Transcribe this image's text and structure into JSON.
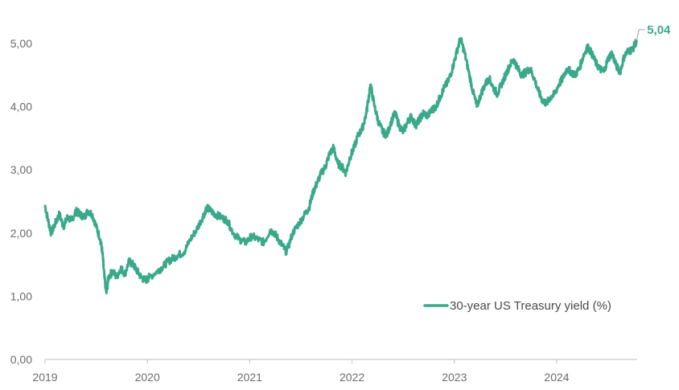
{
  "chart_data": {
    "type": "line",
    "title": "",
    "xlabel": "",
    "ylabel": "",
    "ylim": [
      0,
      5.5
    ],
    "xlim": [
      2019.0,
      2024.8
    ],
    "y_ticks": [
      {
        "value": 0,
        "label": "0,00"
      },
      {
        "value": 1,
        "label": "1,00"
      },
      {
        "value": 2,
        "label": "2,00"
      },
      {
        "value": 3,
        "label": "3,00"
      },
      {
        "value": 4,
        "label": "4,00"
      },
      {
        "value": 5,
        "label": "5,00"
      }
    ],
    "x_ticks": [
      {
        "value": 2019,
        "label": "2019"
      },
      {
        "value": 2020,
        "label": "2020"
      },
      {
        "value": 2021,
        "label": "2021"
      },
      {
        "value": 2022,
        "label": "2022"
      },
      {
        "value": 2023,
        "label": "2023"
      },
      {
        "value": 2024,
        "label": "2024"
      }
    ],
    "grid": false,
    "legend_position": "bottom-right",
    "series": [
      {
        "name": "30-year US Treasury yield (%)",
        "color": "#3aa88a",
        "x": [
          2019.0,
          2019.03,
          2019.06,
          2019.1,
          2019.14,
          2019.18,
          2019.22,
          2019.26,
          2019.3,
          2019.34,
          2019.38,
          2019.42,
          2019.46,
          2019.5,
          2019.54,
          2019.56,
          2019.58,
          2019.6,
          2019.62,
          2019.66,
          2019.7,
          2019.74,
          2019.78,
          2019.82,
          2019.86,
          2019.9,
          2019.94,
          2019.98,
          2020.02,
          2020.1,
          2020.14,
          2020.2,
          2020.25,
          2020.3,
          2020.36,
          2020.42,
          2020.48,
          2020.54,
          2020.58,
          2020.62,
          2020.66,
          2020.72,
          2020.78,
          2020.84,
          2020.9,
          2020.96,
          2021.02,
          2021.08,
          2021.14,
          2021.2,
          2021.24,
          2021.28,
          2021.32,
          2021.36,
          2021.42,
          2021.48,
          2021.54,
          2021.58,
          2021.62,
          2021.66,
          2021.7,
          2021.74,
          2021.78,
          2021.82,
          2021.86,
          2021.9,
          2021.94,
          2021.98,
          2022.02,
          2022.06,
          2022.1,
          2022.14,
          2022.18,
          2022.22,
          2022.26,
          2022.3,
          2022.34,
          2022.38,
          2022.42,
          2022.46,
          2022.5,
          2022.54,
          2022.58,
          2022.62,
          2022.66,
          2022.7,
          2022.74,
          2022.78,
          2022.82,
          2022.86,
          2022.9,
          2022.94,
          2022.98,
          2023.02,
          2023.06,
          2023.1,
          2023.14,
          2023.18,
          2023.22,
          2023.26,
          2023.3,
          2023.34,
          2023.38,
          2023.42,
          2023.46,
          2023.5,
          2023.54,
          2023.58,
          2023.62,
          2023.66,
          2023.7,
          2023.74,
          2023.78,
          2023.82,
          2023.86,
          2023.9,
          2023.94,
          2023.98,
          2024.02,
          2024.06,
          2024.1,
          2024.14,
          2024.18,
          2024.22,
          2024.26,
          2024.3,
          2024.34,
          2024.38,
          2024.42,
          2024.46,
          2024.5,
          2024.54,
          2024.58,
          2024.62,
          2024.66,
          2024.7,
          2024.74,
          2024.78
        ],
        "values": [
          2.43,
          2.2,
          2.0,
          2.15,
          2.3,
          2.1,
          2.25,
          2.2,
          2.35,
          2.3,
          2.25,
          2.35,
          2.3,
          2.1,
          1.9,
          1.7,
          1.3,
          1.05,
          1.3,
          1.4,
          1.3,
          1.45,
          1.35,
          1.55,
          1.5,
          1.4,
          1.3,
          1.25,
          1.3,
          1.4,
          1.45,
          1.55,
          1.6,
          1.65,
          1.7,
          1.9,
          2.05,
          2.25,
          2.4,
          2.35,
          2.3,
          2.25,
          2.2,
          2.0,
          1.9,
          1.85,
          1.95,
          1.9,
          1.85,
          2.05,
          2.0,
          1.9,
          1.8,
          1.7,
          2.0,
          2.15,
          2.3,
          2.4,
          2.65,
          2.8,
          2.95,
          3.05,
          3.25,
          3.35,
          3.1,
          3.05,
          2.95,
          3.2,
          3.35,
          3.55,
          3.65,
          3.9,
          4.35,
          4.0,
          3.75,
          3.6,
          3.55,
          3.75,
          3.9,
          3.7,
          3.6,
          3.75,
          3.85,
          3.7,
          3.8,
          3.9,
          3.85,
          3.95,
          4.0,
          4.15,
          4.3,
          4.4,
          4.6,
          4.85,
          5.08,
          4.85,
          4.55,
          4.25,
          4.0,
          4.2,
          4.35,
          4.45,
          4.3,
          4.2,
          4.35,
          4.5,
          4.65,
          4.75,
          4.6,
          4.5,
          4.55,
          4.6,
          4.45,
          4.25,
          4.1,
          4.05,
          4.15,
          4.2,
          4.35,
          4.45,
          4.6,
          4.55,
          4.5,
          4.6,
          4.8,
          4.95,
          4.85,
          4.7,
          4.6,
          4.55,
          4.75,
          4.85,
          4.65,
          4.55,
          4.8,
          4.88,
          4.9,
          5.04
        ],
        "last_label": "5,04"
      }
    ]
  }
}
